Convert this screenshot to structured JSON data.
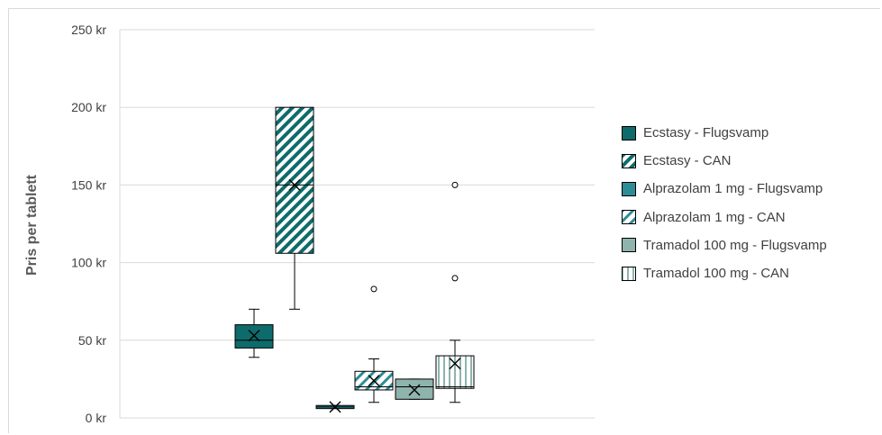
{
  "chart_data": {
    "type": "boxplot",
    "ylabel": "Pris per tablett",
    "ylim": [
      0,
      250
    ],
    "yticks": [
      "0 kr",
      "50 kr",
      "100 kr",
      "150 kr",
      "200 kr",
      "250 kr"
    ],
    "yticks_values": [
      0,
      50,
      100,
      150,
      200,
      250
    ],
    "grid": true,
    "legend_position": "right",
    "series": [
      {
        "name": "Ecstasy - Flugsvamp",
        "color": "#0e6b6b",
        "pattern": "solid",
        "min": 39,
        "q1": 45,
        "median": 50,
        "q3": 60,
        "max": 70,
        "mean": 53,
        "outliers": []
      },
      {
        "name": "Ecstasy - CAN",
        "color": "#0e6b6b",
        "pattern": "diagonal",
        "min": 70,
        "q1": 106,
        "median": 150,
        "q3": 200,
        "max": 200,
        "mean": 150,
        "outliers": []
      },
      {
        "name": "Alprazolam 1 mg - Flugsvamp",
        "color": "#2e8c96",
        "pattern": "solid",
        "min": 6,
        "q1": 6,
        "median": 7,
        "q3": 8,
        "max": 8,
        "mean": 7,
        "outliers": []
      },
      {
        "name": "Alprazolam 1 mg - CAN",
        "color": "#2e8c96",
        "pattern": "diagonal",
        "min": 10,
        "q1": 18,
        "median": 20,
        "q3": 30,
        "max": 38,
        "mean": 24,
        "outliers": [
          83
        ]
      },
      {
        "name": "Tramadol 100 mg - Flugsvamp",
        "color": "#8fb3ad",
        "pattern": "solid",
        "min": 12,
        "q1": 12,
        "median": 20,
        "q3": 25,
        "max": 25,
        "mean": 18,
        "outliers": []
      },
      {
        "name": "Tramadol 100 mg - CAN",
        "color": "#8fb3ad",
        "pattern": "vertical",
        "min": 10,
        "q1": 19,
        "median": 20,
        "q3": 40,
        "max": 50,
        "mean": 35,
        "outliers": [
          90,
          150
        ]
      }
    ]
  }
}
